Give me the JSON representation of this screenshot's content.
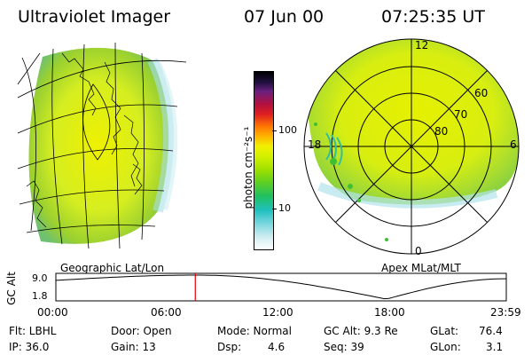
{
  "header": {
    "instrument": "Ultraviolet Imager",
    "date": "07 Jun 00",
    "time": "07:25:35 UT"
  },
  "colorbar": {
    "unit_label": "photon cm⁻²s⁻¹",
    "ticks": [
      "100",
      "10"
    ]
  },
  "left_map": {
    "caption": "Geographic Lat/Lon"
  },
  "right_map": {
    "caption": "Apex MLat/MLT",
    "mlt_labels": [
      "12",
      "18",
      "6",
      "0"
    ],
    "lat_labels": [
      "60",
      "70",
      "80"
    ]
  },
  "altitude_plot": {
    "ylabel": "GC Alt",
    "yticks": [
      "9.0",
      "1.8"
    ],
    "xticks": [
      "00:00",
      "06:00",
      "12:00",
      "18:00",
      "23:59"
    ],
    "current_time_hours": 7.43,
    "series_min_hour": 17.6
  },
  "status": {
    "flt": "Flt: LBHL",
    "ip": "IP: 36.0",
    "door": "Door: Open",
    "gain": "Gain: 13",
    "mode": "Mode: Normal",
    "dsp_label": "Dsp:",
    "dsp_value": "4.6",
    "gcalt": "GC Alt: 9.3 Re",
    "seq": "Seq: 39",
    "glat_label": "GLat:",
    "glat_value": "76.4",
    "glon_label": "GLon:",
    "glon_value": "3.1"
  },
  "colors": {
    "cursor": "#dd0000",
    "grid": "#000000"
  }
}
